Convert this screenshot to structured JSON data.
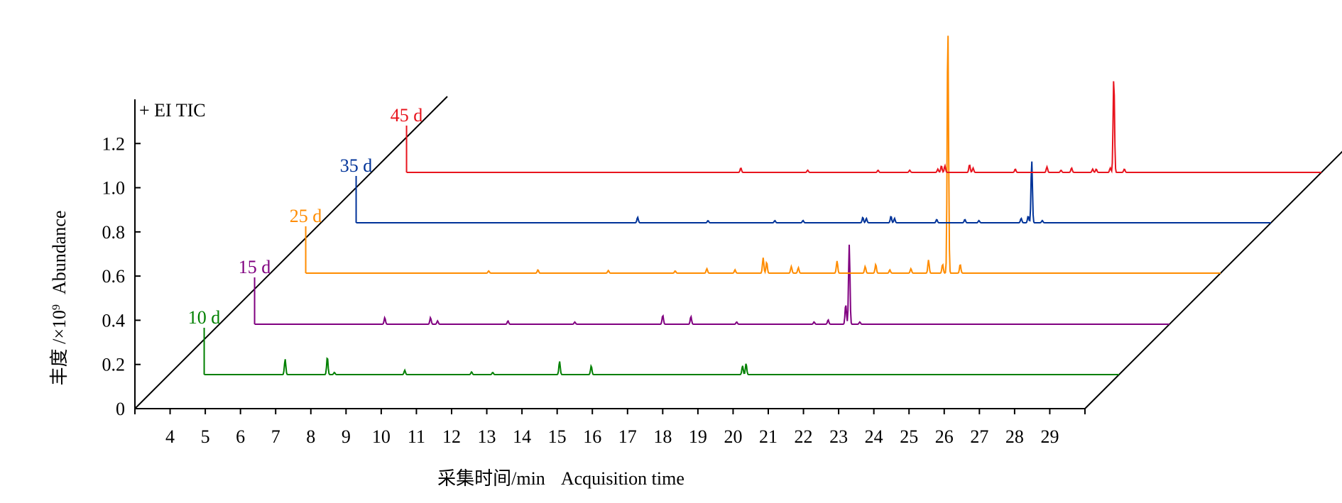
{
  "chart_data": {
    "type": "line",
    "annotation": "+ EI TIC",
    "ylabel_cn": "丰度 /×10",
    "ylabel_exp": "9",
    "ylabel_en": "Abundance",
    "xlabel_cn": "采集时间/min",
    "xlabel_en": "Acquisition time",
    "yticks": [
      "0",
      "0.2",
      "0.4",
      "0.6",
      "0.8",
      "1.0",
      "1.2"
    ],
    "ytick_values": [
      0,
      0.2,
      0.4,
      0.6,
      0.8,
      1.0,
      1.2
    ],
    "xticks": [
      "4",
      "5",
      "6",
      "7",
      "8",
      "9",
      "10",
      "11",
      "12",
      "13",
      "14",
      "15",
      "16",
      "17",
      "18",
      "19",
      "20",
      "21",
      "22",
      "23",
      "24",
      "25",
      "26",
      "27",
      "28",
      "29"
    ],
    "xlim": [
      3,
      30
    ],
    "ylim": [
      0,
      1.4
    ],
    "series": [
      {
        "name": "10 d",
        "color": "#008000",
        "peaks": [
          [
            6.3,
            0.07
          ],
          [
            7.5,
            0.08
          ],
          [
            7.7,
            0.01
          ],
          [
            9.7,
            0.02
          ],
          [
            11.6,
            0.012
          ],
          [
            12.2,
            0.01
          ],
          [
            14.1,
            0.06
          ],
          [
            15.0,
            0.04
          ],
          [
            19.3,
            0.04
          ],
          [
            19.4,
            0.05
          ]
        ]
      },
      {
        "name": "15 d",
        "color": "#800080",
        "peaks": [
          [
            7.7,
            0.03
          ],
          [
            9.0,
            0.03
          ],
          [
            9.2,
            0.015
          ],
          [
            11.2,
            0.015
          ],
          [
            13.1,
            0.01
          ],
          [
            15.6,
            0.04
          ],
          [
            16.4,
            0.035
          ],
          [
            17.7,
            0.01
          ],
          [
            19.9,
            0.01
          ],
          [
            20.3,
            0.02
          ],
          [
            20.8,
            0.09
          ],
          [
            20.9,
            0.36
          ],
          [
            21.2,
            0.01
          ]
        ]
      },
      {
        "name": "25 d",
        "color": "#FF8C00",
        "peaks": [
          [
            9.2,
            0.01
          ],
          [
            10.6,
            0.015
          ],
          [
            12.6,
            0.012
          ],
          [
            14.5,
            0.01
          ],
          [
            15.4,
            0.02
          ],
          [
            16.2,
            0.015
          ],
          [
            17.0,
            0.07
          ],
          [
            17.1,
            0.05
          ],
          [
            17.8,
            0.03
          ],
          [
            18.0,
            0.025
          ],
          [
            19.1,
            0.055
          ],
          [
            19.9,
            0.03
          ],
          [
            20.2,
            0.04
          ],
          [
            20.6,
            0.015
          ],
          [
            21.2,
            0.02
          ],
          [
            21.7,
            0.06
          ],
          [
            22.1,
            0.04
          ],
          [
            22.25,
            1.12
          ],
          [
            22.6,
            0.04
          ]
        ]
      },
      {
        "name": "35 d",
        "color": "#003399",
        "peaks": [
          [
            12.0,
            0.025
          ],
          [
            14.0,
            0.01
          ],
          [
            15.9,
            0.01
          ],
          [
            16.7,
            0.01
          ],
          [
            18.4,
            0.025
          ],
          [
            18.5,
            0.02
          ],
          [
            19.2,
            0.03
          ],
          [
            19.3,
            0.02
          ],
          [
            20.5,
            0.015
          ],
          [
            21.3,
            0.015
          ],
          [
            21.7,
            0.01
          ],
          [
            22.9,
            0.02
          ],
          [
            23.1,
            0.03
          ],
          [
            23.2,
            0.28
          ],
          [
            23.5,
            0.01
          ]
        ]
      },
      {
        "name": "45 d",
        "color": "#E8141E",
        "peaks": [
          [
            13.5,
            0.02
          ],
          [
            15.4,
            0.01
          ],
          [
            17.4,
            0.01
          ],
          [
            18.3,
            0.01
          ],
          [
            19.1,
            0.015
          ],
          [
            19.2,
            0.03
          ],
          [
            19.3,
            0.03
          ],
          [
            20.0,
            0.035
          ],
          [
            20.1,
            0.02
          ],
          [
            21.3,
            0.015
          ],
          [
            22.2,
            0.025
          ],
          [
            22.6,
            0.01
          ],
          [
            22.9,
            0.02
          ],
          [
            23.5,
            0.015
          ],
          [
            23.6,
            0.015
          ],
          [
            24.0,
            0.02
          ],
          [
            24.1,
            0.43
          ],
          [
            24.4,
            0.015
          ]
        ]
      }
    ]
  }
}
